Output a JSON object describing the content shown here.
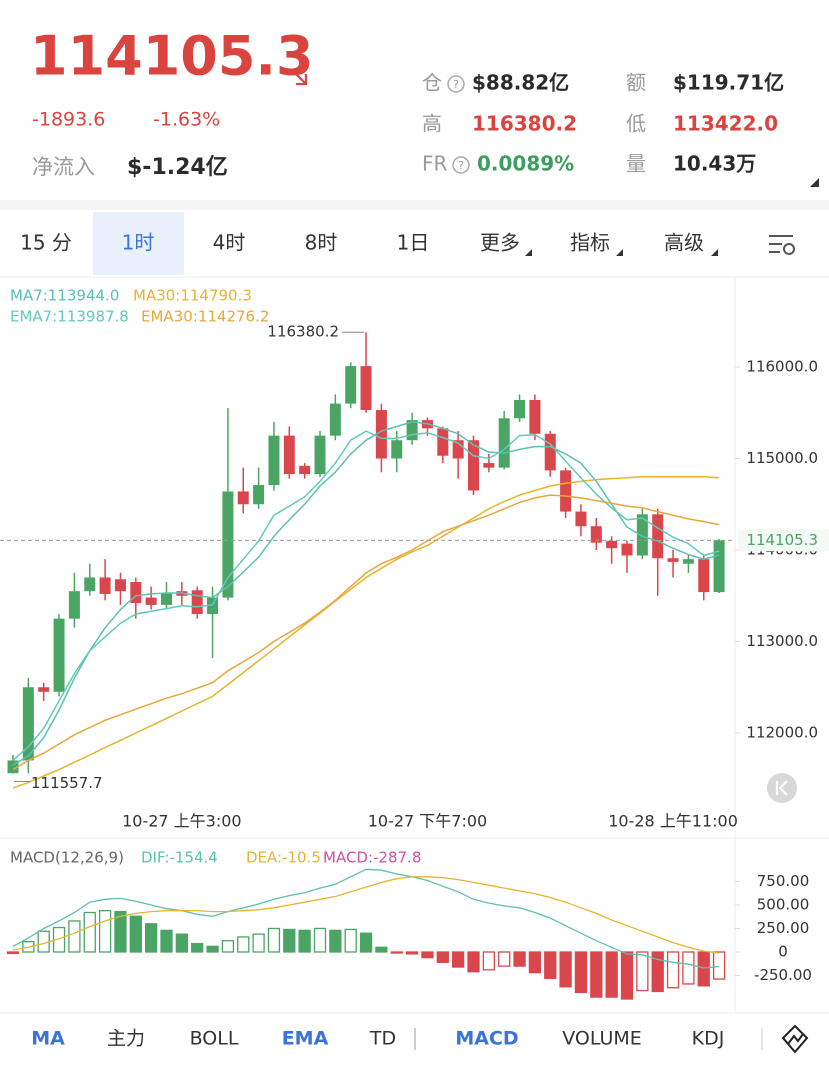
{
  "header": {
    "price": "114105.3",
    "change": "-1893.6",
    "change_pct": "-1.63%",
    "net_inflow_label": "净流入",
    "net_inflow": "$-1.24亿",
    "help_icon": "?",
    "stats": [
      {
        "label": "仓",
        "value": "$88.82亿"
      },
      {
        "label": "额",
        "value": "$119.71亿"
      },
      {
        "label": "高",
        "value": "116380.2"
      },
      {
        "label": "低",
        "value": "113422.0"
      },
      {
        "label": "FR",
        "value": "0.0089%"
      },
      {
        "label": "量",
        "value": "10.43万"
      }
    ]
  },
  "intervals": [
    "15 分",
    "1时",
    "4时",
    "8时",
    "1日",
    "更多",
    "指标",
    "高级"
  ],
  "indicators": [
    "MA",
    "主力",
    "BOLL",
    "EMA",
    "TD",
    "MACD",
    "VOLUME",
    "KDJ"
  ],
  "chart_data": [
    {
      "type": "candlestick",
      "up_color": "#4aa564",
      "down_color": "#d9474d",
      "categories": [
        null,
        null,
        null,
        null,
        null,
        null,
        null,
        null,
        null,
        null,
        null,
        "10-27 上午3:00",
        null,
        null,
        null,
        null,
        null,
        null,
        null,
        null,
        null,
        null,
        null,
        null,
        null,
        null,
        null,
        "10-27 下午7:00",
        null,
        null,
        null,
        null,
        null,
        null,
        null,
        null,
        null,
        null,
        null,
        null,
        null,
        null,
        null,
        "10-28 上午11:00",
        null,
        null,
        null
      ],
      "open": [
        111560,
        111700,
        112500,
        112450,
        113250,
        113550,
        113700,
        113680,
        113650,
        113480,
        113400,
        113550,
        113560,
        113300,
        113480,
        114640,
        114500,
        114710,
        115250,
        114920,
        114830,
        115250,
        115600,
        116010,
        115530,
        115000,
        115200,
        115420,
        115330,
        115200,
        115200,
        114950,
        114900,
        115440,
        115640,
        115270,
        114870,
        114420,
        114260,
        114100,
        114070,
        113940,
        114390,
        113910,
        113850,
        113900,
        113540
      ],
      "high": [
        111760,
        112600,
        112550,
        113300,
        113750,
        113850,
        113900,
        113750,
        113700,
        113600,
        113650,
        113650,
        113600,
        113600,
        115550,
        114900,
        114900,
        115400,
        115350,
        114950,
        115300,
        115700,
        116050,
        116380.2,
        115600,
        115300,
        115500,
        115450,
        115350,
        115300,
        115250,
        115050,
        115520,
        115700,
        115700,
        115300,
        114900,
        114500,
        114350,
        114150,
        114100,
        114450,
        114450,
        114000,
        113950,
        113950,
        114120
      ],
      "low": [
        111557.7,
        111560,
        112350,
        112400,
        113150,
        113500,
        113450,
        113400,
        113250,
        113350,
        113350,
        113400,
        113250,
        112820,
        113450,
        114400,
        114450,
        114650,
        114780,
        114780,
        114800,
        115200,
        115550,
        115500,
        114850,
        114850,
        115150,
        115250,
        114950,
        114780,
        114600,
        114850,
        114880,
        115400,
        115200,
        114800,
        114350,
        114150,
        114000,
        113850,
        113750,
        113900,
        113500,
        113700,
        113750,
        113450,
        113530
      ],
      "close": [
        111700,
        112500,
        112450,
        113250,
        113550,
        113700,
        113520,
        113550,
        113420,
        113400,
        113530,
        113500,
        113300,
        113480,
        114640,
        114500,
        114710,
        115250,
        114830,
        114830,
        115250,
        115600,
        116010,
        115530,
        115000,
        115200,
        115420,
        115330,
        115030,
        115000,
        114650,
        114900,
        115440,
        115640,
        115270,
        114870,
        114420,
        114260,
        114080,
        114020,
        113940,
        114390,
        113910,
        113870,
        113900,
        113540,
        114105.3
      ],
      "ylim": [
        111213,
        116951
      ],
      "yticks": [
        {
          "value": 116000,
          "label": "116000.0"
        },
        {
          "value": 115000,
          "label": "115000.0"
        },
        {
          "value": 114000,
          "label": "114000.0"
        },
        {
          "value": 113000,
          "label": "113000.0"
        },
        {
          "value": 112000,
          "label": "112000.0"
        }
      ],
      "series": [
        {
          "name": "MA7:113944.0",
          "color": "#5bc1ae",
          "values": [
            111650,
            111750,
            111950,
            112250,
            112600,
            112900,
            113150,
            113350,
            113500,
            113520,
            113530,
            113530,
            113500,
            113480,
            113600,
            113760,
            113920,
            114150,
            114330,
            114500,
            114700,
            114850,
            115050,
            115200,
            115300,
            115350,
            115400,
            115380,
            115330,
            115270,
            115150,
            115070,
            115060,
            115100,
            115130,
            115130,
            115050,
            114950,
            114750,
            114500,
            114250,
            114150,
            114100,
            114020,
            113950,
            113900,
            113944
          ]
        },
        {
          "name": "MA30:114790.3",
          "color": "#e6b52e",
          "values": [
            111400,
            111460,
            111530,
            111600,
            111680,
            111760,
            111840,
            111920,
            112000,
            112080,
            112160,
            112240,
            112320,
            112400,
            112530,
            112660,
            112790,
            112920,
            113050,
            113180,
            113310,
            113440,
            113570,
            113700,
            113800,
            113900,
            113980,
            114050,
            114150,
            114250,
            114350,
            114450,
            114530,
            114600,
            114650,
            114700,
            114730,
            114750,
            114770,
            114780,
            114790,
            114800,
            114800,
            114800,
            114800,
            114800,
            114790.3
          ]
        },
        {
          "name": "EMA7:113987.8",
          "color": "#62c9bd",
          "values": [
            111700,
            111850,
            112050,
            112350,
            112650,
            112900,
            113050,
            113200,
            113300,
            113330,
            113360,
            113390,
            113380,
            113400,
            113700,
            113900,
            114100,
            114380,
            114480,
            114580,
            114750,
            114950,
            115200,
            115300,
            115220,
            115220,
            115260,
            115280,
            115230,
            115170,
            115030,
            115000,
            115100,
            115250,
            115260,
            115160,
            114970,
            114790,
            114610,
            114460,
            114330,
            114350,
            114240,
            114140,
            114070,
            113940,
            113987.8
          ]
        },
        {
          "name": "EMA30:114276.2",
          "color": "#e9a63a",
          "values": [
            111600,
            111700,
            111780,
            111880,
            111980,
            112060,
            112140,
            112200,
            112260,
            112320,
            112380,
            112430,
            112490,
            112550,
            112680,
            112780,
            112880,
            113000,
            113100,
            113200,
            113320,
            113450,
            113600,
            113750,
            113850,
            113920,
            114000,
            114100,
            114200,
            114260,
            114320,
            114380,
            114450,
            114520,
            114570,
            114600,
            114590,
            114570,
            114540,
            114510,
            114480,
            114460,
            114420,
            114380,
            114340,
            114310,
            114276.2
          ]
        }
      ]
    },
    {
      "type": "bar",
      "title": "MACD(12,26,9)",
      "name": "MACD:-287.8",
      "name_color": "#d04fa0",
      "up_color": "#4aa564",
      "down_color": "#d9474d",
      "values": [
        -15,
        110,
        220,
        260,
        330,
        420,
        440,
        430,
        380,
        300,
        230,
        190,
        90,
        60,
        120,
        160,
        190,
        250,
        240,
        230,
        250,
        230,
        240,
        200,
        50,
        -10,
        -20,
        -60,
        -110,
        -160,
        -210,
        -190,
        -150,
        -150,
        -220,
        -280,
        -370,
        -430,
        -480,
        -480,
        -500,
        -410,
        -420,
        -380,
        -340,
        -360,
        -287.8
      ],
      "ylim": [
        -617,
        1138
      ],
      "yticks": [
        {
          "value": 750,
          "label": "750.00"
        },
        {
          "value": 500,
          "label": "500.00"
        },
        {
          "value": 250,
          "label": "250.00"
        },
        0,
        {
          "value": -250,
          "label": "-250.00"
        }
      ],
      "series": [
        {
          "name": "DIF:-154.4",
          "color": "#5bc1ae",
          "values": [
            60,
            150,
            250,
            330,
            420,
            530,
            560,
            570,
            540,
            500,
            460,
            440,
            400,
            380,
            430,
            470,
            510,
            560,
            600,
            630,
            680,
            720,
            800,
            880,
            870,
            830,
            800,
            760,
            700,
            640,
            560,
            520,
            490,
            470,
            420,
            360,
            280,
            200,
            120,
            50,
            -20,
            -30,
            -80,
            -110,
            -130,
            -170,
            -154.4
          ]
        },
        {
          "name": "DEA:-10.5",
          "color": "#e6b52e",
          "values": [
            20,
            50,
            90,
            140,
            200,
            270,
            330,
            380,
            410,
            430,
            440,
            440,
            440,
            430,
            430,
            440,
            450,
            470,
            500,
            530,
            560,
            590,
            640,
            690,
            740,
            780,
            800,
            800,
            790,
            770,
            740,
            710,
            680,
            650,
            620,
            580,
            530,
            470,
            410,
            340,
            280,
            220,
            160,
            100,
            50,
            10,
            -10.5
          ]
        }
      ]
    }
  ]
}
